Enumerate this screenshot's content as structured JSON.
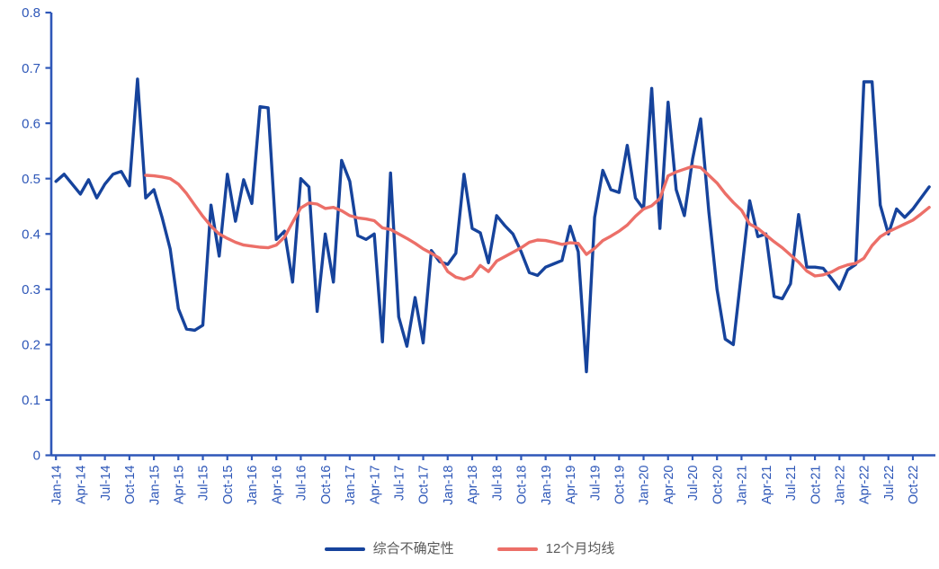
{
  "chart_data": {
    "type": "line",
    "title": "",
    "xlabel": "",
    "ylabel": "",
    "ylim": [
      0,
      0.8
    ],
    "y_tick_step": 0.1,
    "y_tick_labels": [
      "0",
      "0.1",
      "0.2",
      "0.3",
      "0.4",
      "0.5",
      "0.6",
      "0.7",
      "0.8"
    ],
    "grid": false,
    "legend_position": "bottom-center",
    "axis_color": "#2e57b8",
    "x": {
      "unit": "month",
      "start": "Jan-14",
      "end": "Dec-22",
      "months_total": 108,
      "tick_every_months": 3,
      "tick_labels": [
        "Jan-14",
        "Apr-14",
        "Jul-14",
        "Oct-14",
        "Jan-15",
        "Apr-15",
        "Jul-15",
        "Oct-15",
        "Jan-16",
        "Apr-16",
        "Jul-16",
        "Oct-16",
        "Jan-17",
        "Apr-17",
        "Jul-17",
        "Oct-17",
        "Jan-18",
        "Apr-18",
        "Jul-18",
        "Oct-18",
        "Jan-19",
        "Apr-19",
        "Jul-19",
        "Oct-19",
        "Jan-20",
        "Apr-20",
        "Jul-20",
        "Oct-20",
        "Jan-21",
        "Apr-21",
        "Jul-21",
        "Oct-21",
        "Jan-22",
        "Apr-22",
        "Jul-22",
        "Oct-22"
      ]
    },
    "series": [
      {
        "name": "综合不确定性",
        "color": "#16439c",
        "line_width": 3.4,
        "values": [
          0.495,
          0.508,
          0.49,
          0.472,
          0.498,
          0.465,
          0.49,
          0.508,
          0.513,
          0.487,
          0.68,
          0.465,
          0.48,
          0.43,
          0.373,
          0.265,
          0.228,
          0.226,
          0.235,
          0.452,
          0.36,
          0.508,
          0.423,
          0.498,
          0.455,
          0.63,
          0.628,
          0.39,
          0.405,
          0.313,
          0.5,
          0.485,
          0.26,
          0.4,
          0.313,
          0.533,
          0.495,
          0.397,
          0.39,
          0.4,
          0.205,
          0.51,
          0.25,
          0.197,
          0.285,
          0.203,
          0.37,
          0.35,
          0.345,
          0.365,
          0.508,
          0.41,
          0.402,
          0.348,
          0.433,
          0.415,
          0.4,
          0.368,
          0.33,
          0.325,
          0.34,
          0.346,
          0.352,
          0.414,
          0.368,
          0.151,
          0.43,
          0.515,
          0.48,
          0.475,
          0.56,
          0.465,
          0.445,
          0.663,
          0.41,
          0.638,
          0.48,
          0.433,
          0.535,
          0.608,
          0.44,
          0.3,
          0.21,
          0.2,
          0.33,
          0.46,
          0.395,
          0.4,
          0.287,
          0.283,
          0.31,
          0.435,
          0.34,
          0.34,
          0.338,
          0.32,
          0.3,
          0.335,
          0.345,
          0.675,
          0.675,
          0.452,
          0.4,
          0.445,
          0.43,
          0.445,
          0.465,
          0.485
        ]
      },
      {
        "name": "12个月均线",
        "color": "#ec6f68",
        "line_width": 3.4,
        "values": [
          null,
          null,
          null,
          null,
          null,
          null,
          null,
          null,
          null,
          null,
          null,
          0.506,
          0.505,
          0.503,
          0.5,
          0.49,
          0.473,
          0.452,
          0.432,
          0.414,
          0.4,
          0.392,
          0.385,
          0.38,
          0.378,
          0.376,
          0.375,
          0.38,
          0.394,
          0.421,
          0.447,
          0.456,
          0.454,
          0.446,
          0.448,
          0.442,
          0.433,
          0.429,
          0.427,
          0.424,
          0.411,
          0.408,
          0.4,
          0.392,
          0.383,
          0.373,
          0.365,
          0.356,
          0.332,
          0.322,
          0.318,
          0.324,
          0.343,
          0.332,
          0.351,
          0.359,
          0.367,
          0.375,
          0.385,
          0.389,
          0.388,
          0.385,
          0.381,
          0.384,
          0.383,
          0.363,
          0.374,
          0.388,
          0.396,
          0.405,
          0.416,
          0.432,
          0.445,
          0.451,
          0.464,
          0.505,
          0.512,
          0.517,
          0.522,
          0.52,
          0.506,
          0.492,
          0.473,
          0.457,
          0.443,
          0.418,
          0.41,
          0.398,
          0.386,
          0.375,
          0.362,
          0.349,
          0.333,
          0.324,
          0.326,
          0.331,
          0.339,
          0.344,
          0.347,
          0.356,
          0.379,
          0.395,
          0.404,
          0.411,
          0.418,
          0.425,
          0.436,
          0.448
        ]
      }
    ],
    "legend_text_color": "#595959"
  }
}
